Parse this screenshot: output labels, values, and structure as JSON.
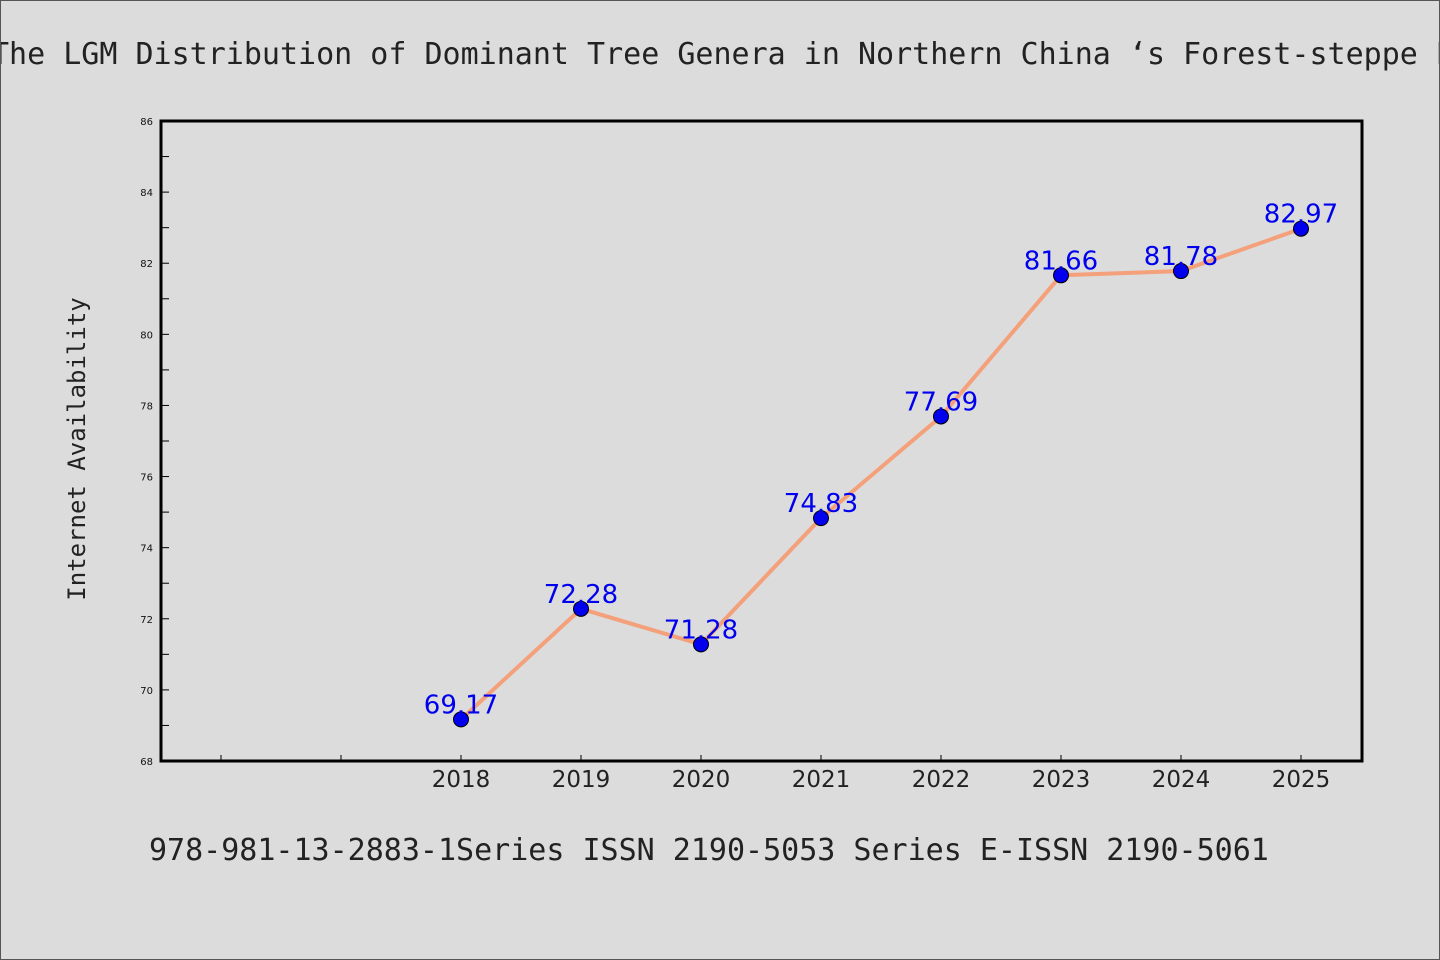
{
  "title": "The LGM Distribution of Dominant Tree Genera in Northern China ‘s Forest-steppe E",
  "footer": "978-981-13-2883-1Series ISSN 2190-5053 Series E-ISSN 2190-5061",
  "colors": {
    "background": "#dcdcdc",
    "line": "#f4a07a",
    "marker": "#0000ee",
    "data_label": "#0000ee"
  },
  "chart_data": {
    "type": "line",
    "title": "The LGM Distribution of Dominant Tree Genera in Northern China ‘s Forest-steppe E",
    "xlabel": "",
    "ylabel": "Internet Availability",
    "ylim": [
      68,
      86
    ],
    "yticks": [
      "68",
      "70",
      "72",
      "74",
      "76",
      "78",
      "80",
      "82",
      "84",
      "86"
    ],
    "categories": [
      "2018",
      "2019",
      "2020",
      "2021",
      "2022",
      "2023",
      "2024",
      "2025"
    ],
    "values": [
      69.17,
      72.28,
      71.28,
      74.83,
      77.69,
      81.66,
      81.78,
      82.97
    ],
    "data_labels": [
      "69.17",
      "72.28",
      "71.28",
      "74.83",
      "77.69",
      "81.66",
      "81.78",
      "82.97"
    ],
    "grid": false,
    "legend": "none"
  }
}
